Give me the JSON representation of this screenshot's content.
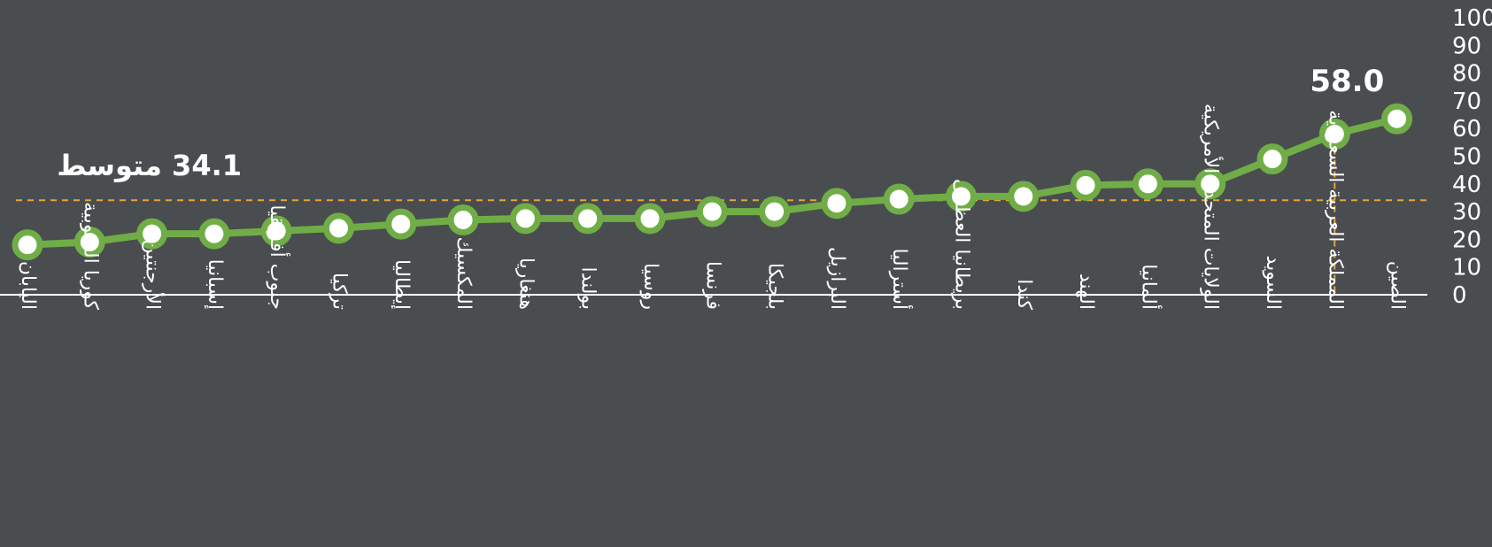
{
  "chart_data": {
    "type": "line",
    "categories": [
      "اليابان",
      "كوريا الجنوبية",
      "الأرجنتين",
      "إسبانيا",
      "جنوب أفريقيا",
      "تركيا",
      "إيطاليا",
      "المكسيك",
      "هنغاريا",
      "بولندا",
      "روسيا",
      "فرنسا",
      "بلجيكا",
      "البرازيل",
      "أستراليا",
      "بريطانيا العظمى",
      "كندا",
      "الهند",
      "ألمانيا",
      "الولايات المتحدة الأمريكية",
      "السويد",
      "المملكة العربية السعودية",
      "الصين"
    ],
    "series": [
      {
        "values": [
          18,
          19,
          22,
          22,
          23,
          24,
          25.5,
          27,
          27.5,
          27.5,
          27.5,
          30,
          30,
          33,
          34.5,
          35.5,
          35.5,
          39.5,
          40,
          40,
          49,
          58,
          63.5
        ]
      }
    ],
    "ylim": [
      0,
      100
    ],
    "yticks": [
      0,
      10,
      20,
      30,
      40,
      50,
      60,
      70,
      80,
      90,
      100
    ],
    "average": {
      "value": 34.1,
      "text": "34.1 متوسط"
    },
    "highlight": {
      "category": "المملكة العربية السعودية",
      "label": "58.0"
    },
    "colors": {
      "background": "#4a4d4f",
      "line": "#70ad47",
      "marker_fill": "#ffffff",
      "average_line": "#e8a33a",
      "text": "#ffffff",
      "axis": "#ffffff"
    },
    "grid": false,
    "legend": "none"
  }
}
